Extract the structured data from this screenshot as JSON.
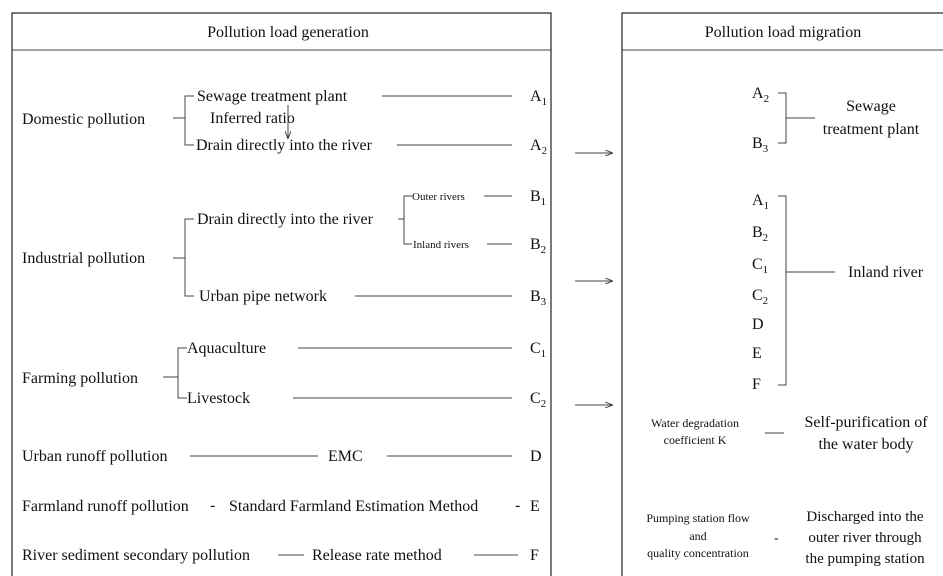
{
  "panels": {
    "generation_title": "Pollution load generation",
    "migration_title": "Pollution load migration"
  },
  "generation": {
    "domestic": {
      "label": "Domestic pollution",
      "sewage_plant": "Sewage treatment plant",
      "inferred_ratio": "Inferred ratio",
      "drain_direct": "Drain directly into the river",
      "code_a1": "A",
      "code_a1_sub": "1",
      "code_a2": "A",
      "code_a2_sub": "2"
    },
    "industrial": {
      "label": "Industrial pollution",
      "drain_direct": "Drain directly into the river",
      "outer_rivers": "Outer rivers",
      "inland_rivers": "Inland rivers",
      "urban_pipe": "Urban pipe network",
      "code_b1": "B",
      "code_b1_sub": "1",
      "code_b2": "B",
      "code_b2_sub": "2",
      "code_b3": "B",
      "code_b3_sub": "3"
    },
    "farming": {
      "label": "Farming pollution",
      "aquaculture": "Aquaculture",
      "livestock": "Livestock",
      "code_c1": "C",
      "code_c1_sub": "1",
      "code_c2": "C",
      "code_c2_sub": "2"
    },
    "urban_runoff": {
      "label": "Urban runoff pollution",
      "method": "EMC",
      "code": "D"
    },
    "farmland_runoff": {
      "label": "Farmland runoff pollution",
      "dash1": "-",
      "method": "Standard Farmland Estimation Method",
      "dash2": "-",
      "code": "E"
    },
    "sediment": {
      "label": "River sediment secondary pollution",
      "method": "Release rate method",
      "code": "F"
    }
  },
  "migration": {
    "sewage_group": {
      "a": "A",
      "a_sub": "2",
      "b": "B",
      "b_sub": "3",
      "target_line1": "Sewage",
      "target_line2": "treatment plant"
    },
    "inland_group": {
      "a1": "A",
      "a1_sub": "1",
      "b2": "B",
      "b2_sub": "2",
      "c1": "C",
      "c1_sub": "1",
      "c2": "C",
      "c2_sub": "2",
      "d": "D",
      "e": "E",
      "f": "F",
      "target": "Inland river"
    },
    "degradation": {
      "left_line1": "Water degradation",
      "left_line2": "coefficient K",
      "right_line1": "Self-purification of",
      "right_line2": "the water body"
    },
    "pumping": {
      "left_line1": "Pumping station flow",
      "left_line2": "and",
      "left_line3": "quality concentration",
      "dash": "-",
      "right_line1": "Discharged into the",
      "right_line2": "outer river through",
      "right_line3": "the pumping station"
    }
  }
}
